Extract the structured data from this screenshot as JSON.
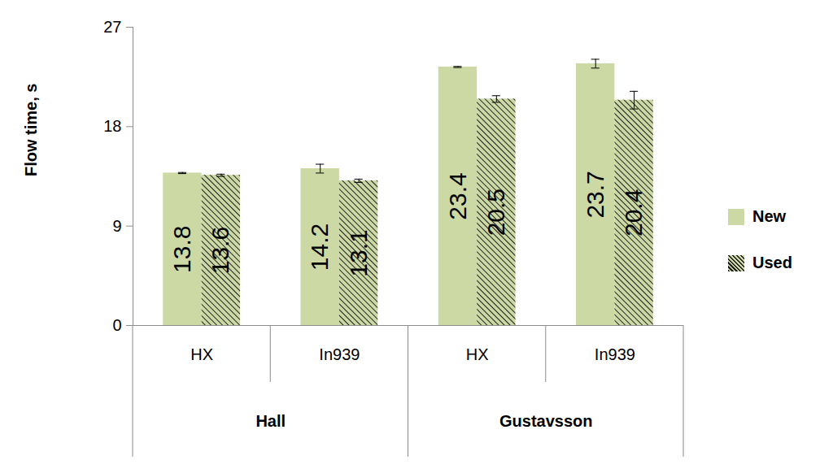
{
  "chart_data": {
    "type": "bar",
    "y_label": "Flow time, s",
    "categories": [
      "HX",
      "In939",
      "HX",
      "In939"
    ],
    "category_groups": [
      "Hall",
      "Hall",
      "Gustavsson",
      "Gustavsson"
    ],
    "series": [
      {
        "name": "New",
        "color": "#ccd9a4",
        "values": [
          13.8,
          14.2,
          23.4,
          23.7
        ],
        "errors": [
          0.05,
          0.4,
          0.05,
          0.4
        ]
      },
      {
        "name": "Used",
        "color": "#ccd9a4",
        "values": [
          13.6,
          13.1,
          20.5,
          20.4
        ],
        "errors": [
          0.1,
          0.15,
          0.3,
          0.8
        ]
      }
    ],
    "ylim": [
      0,
      27
    ],
    "yticks": [
      0,
      9,
      18,
      27
    ],
    "grid": false,
    "data_labels": true,
    "legend": "right"
  }
}
